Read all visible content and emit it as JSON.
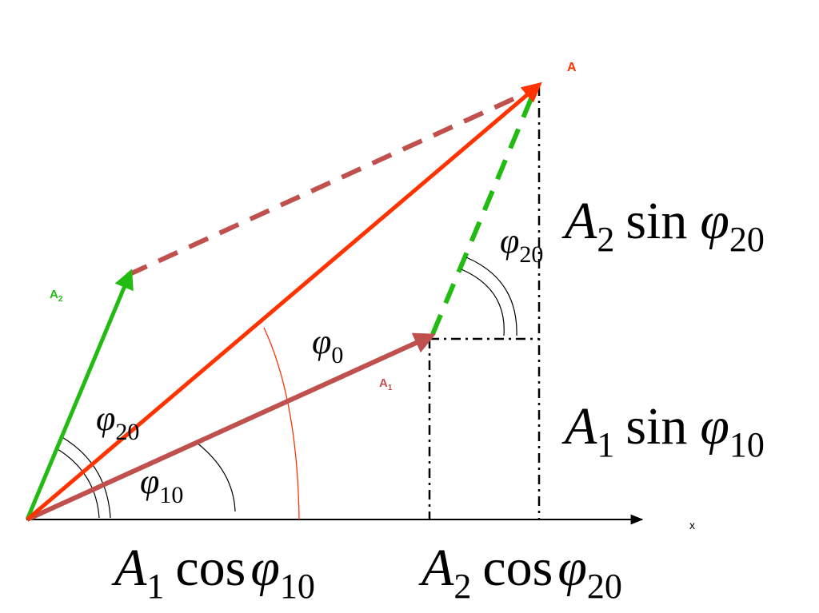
{
  "labels": {
    "A": "A",
    "A1_letter": "A",
    "A1_sub": "1",
    "A2_letter": "A",
    "A2_sub": "2",
    "x_axis": "x"
  },
  "angles": {
    "phi0": {
      "sym": "φ",
      "sub": "0"
    },
    "phi10": {
      "sym": "φ",
      "sub": "10"
    },
    "phi20_left": {
      "sym": "φ",
      "sub": "20"
    },
    "phi20_right": {
      "sym": "φ",
      "sub": "20"
    }
  },
  "formulas": {
    "a2_sin": {
      "A": "A",
      "Asub": "2",
      "fn": "sin",
      "phi": "φ",
      "phisub": "20"
    },
    "a1_sin": {
      "A": "A",
      "Asub": "1",
      "fn": "sin",
      "phi": "φ",
      "phisub": "10"
    },
    "a1_cos": {
      "A": "A",
      "Asub": "1",
      "fn": "cos",
      "phi": "φ",
      "phisub": "10"
    },
    "a2_cos": {
      "A": "A",
      "Asub": "2",
      "fn": "cos",
      "phi": "φ",
      "phisub": "20"
    }
  },
  "colors": {
    "resultant": "#ff3300",
    "a1": "#c0504d",
    "a2": "#22bb11",
    "axis": "#000000",
    "arc_phi0": "#ff3300"
  }
}
